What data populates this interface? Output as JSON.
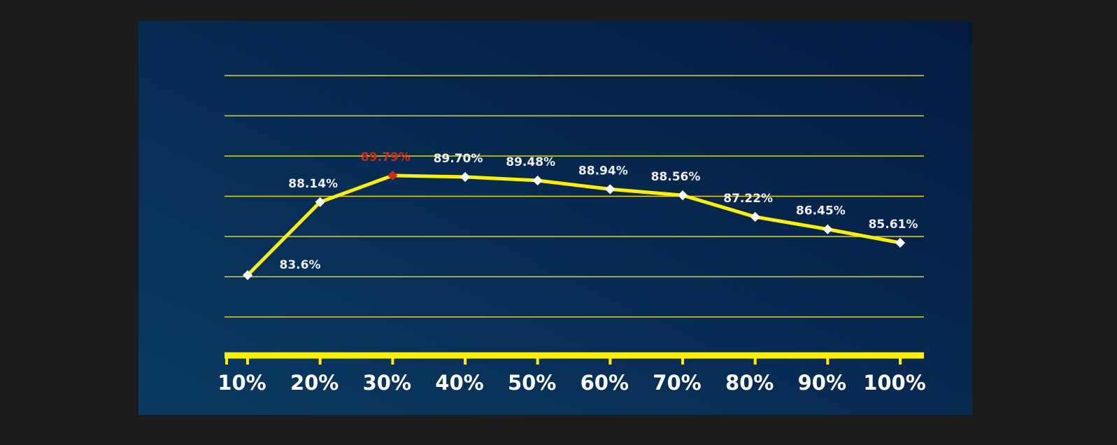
{
  "chart_data": {
    "type": "line",
    "categories": [
      "10%",
      "20%",
      "30%",
      "40%",
      "50%",
      "60%",
      "70%",
      "80%",
      "90%",
      "100%"
    ],
    "values": [
      83.6,
      88.14,
      89.79,
      89.7,
      89.48,
      88.94,
      88.56,
      87.22,
      86.45,
      85.61
    ],
    "value_labels": [
      "83.6%",
      "88.14%",
      "89.79%",
      "89.70%",
      "89.48%",
      "88.94%",
      "88.56%",
      "87.22%",
      "86.45%",
      "85.61%"
    ],
    "color": "#ffef00",
    "point_colors": [
      "#ffffff",
      "#ffffff",
      "#d42a0c",
      "#ffffff",
      "#ffffff",
      "#ffffff",
      "#ffffff",
      "#ffffff",
      "#ffffff",
      "#ffffff"
    ],
    "ylim": [
      81,
      96
    ]
  }
}
